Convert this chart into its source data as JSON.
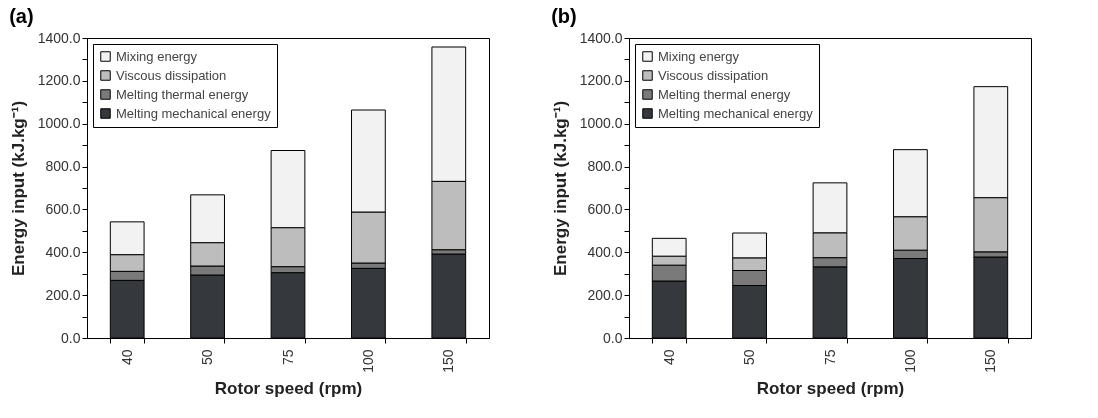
{
  "chart_data": [
    {
      "type": "bar",
      "title": "(a)",
      "xlabel": "Rotor speed (rpm)",
      "ylabel": "Energy input (kJ.kg⁻¹)",
      "categories": [
        "40",
        "50",
        "75",
        "100",
        "150"
      ],
      "stacked": true,
      "legend": "top left",
      "grid": false,
      "ylim": [
        0,
        1400
      ],
      "yticks": [
        {
          "value": 0,
          "label": "0.0"
        },
        {
          "value": 100,
          "label": null
        },
        {
          "value": 200,
          "label": "200.0"
        },
        {
          "value": 300,
          "label": null
        },
        {
          "value": 400,
          "label": "400.0"
        },
        {
          "value": 500,
          "label": null
        },
        {
          "value": 600,
          "label": "600.0"
        },
        {
          "value": 700,
          "label": null
        },
        {
          "value": 800,
          "label": "800.0"
        },
        {
          "value": 900,
          "label": null
        },
        {
          "value": 1000,
          "label": "1000.0"
        },
        {
          "value": 1100,
          "label": null
        },
        {
          "value": 1200,
          "label": "1200.0"
        },
        {
          "value": 1300,
          "label": null
        },
        {
          "value": 1400,
          "label": "1400.0"
        }
      ],
      "series": [
        {
          "name": "Melting mechanical energy",
          "color": "#35383c",
          "values": [
            269,
            294,
            305,
            325,
            392
          ]
        },
        {
          "name": "Melting thermal energy",
          "color": "#7a7a7a",
          "values": [
            42,
            42,
            28,
            25,
            20
          ]
        },
        {
          "name": "Viscous dissipation",
          "color": "#bdbdbd",
          "values": [
            78,
            109,
            182,
            238,
            319
          ]
        },
        {
          "name": "Mixing energy",
          "color": "#f2f2f2",
          "values": [
            153,
            223,
            360,
            476,
            627
          ]
        }
      ]
    },
    {
      "type": "bar",
      "title": "(b)",
      "xlabel": "Rotor speed (rpm)",
      "ylabel": "Energy input (kJ.kg⁻¹)",
      "categories": [
        "40",
        "50",
        "75",
        "100",
        "150"
      ],
      "stacked": true,
      "legend": "top left",
      "grid": false,
      "ylim": [
        0,
        1400
      ],
      "yticks": [
        {
          "value": 0,
          "label": "0.0"
        },
        {
          "value": 100,
          "label": null
        },
        {
          "value": 200,
          "label": "200.0"
        },
        {
          "value": 300,
          "label": null
        },
        {
          "value": 400,
          "label": "400.0"
        },
        {
          "value": 500,
          "label": null
        },
        {
          "value": 600,
          "label": "600.0"
        },
        {
          "value": 700,
          "label": null
        },
        {
          "value": 800,
          "label": "800.0"
        },
        {
          "value": 900,
          "label": null
        },
        {
          "value": 1000,
          "label": "1000.0"
        },
        {
          "value": 1100,
          "label": null
        },
        {
          "value": 1200,
          "label": "1200.0"
        },
        {
          "value": 1300,
          "label": null
        },
        {
          "value": 1400,
          "label": "1400.0"
        }
      ],
      "series": [
        {
          "name": "Melting mechanical energy",
          "color": "#35383c",
          "values": [
            266,
            245,
            332,
            371,
            378
          ]
        },
        {
          "name": "Melting thermal energy",
          "color": "#7a7a7a",
          "values": [
            74,
            70,
            43,
            39,
            24
          ]
        },
        {
          "name": "Viscous dissipation",
          "color": "#bdbdbd",
          "values": [
            42,
            59,
            116,
            156,
            253
          ]
        },
        {
          "name": "Mixing energy",
          "color": "#f2f2f2",
          "values": [
            83,
            116,
            233,
            313,
            518
          ]
        }
      ]
    }
  ]
}
